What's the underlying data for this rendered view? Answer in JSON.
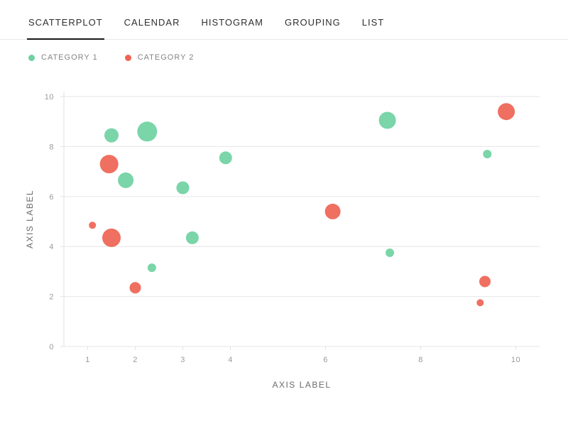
{
  "tabs": {
    "items": [
      {
        "label": "SCATTERPLOT",
        "active": true
      },
      {
        "label": "CALENDAR",
        "active": false
      },
      {
        "label": "HISTOGRAM",
        "active": false
      },
      {
        "label": "GROUPING",
        "active": false
      },
      {
        "label": "LIST",
        "active": false
      }
    ]
  },
  "chart_data": {
    "type": "scatter",
    "title": "",
    "xlabel": "AXIS LABEL",
    "ylabel": "AXIS LABEL",
    "xlim": [
      0.5,
      10.5
    ],
    "ylim": [
      0,
      10.2
    ],
    "x_ticks": [
      1,
      2,
      3,
      4,
      6,
      8,
      10
    ],
    "y_ticks": [
      0,
      2,
      4,
      6,
      8,
      10
    ],
    "grid": "horizontal",
    "legend_position": "top-left",
    "colors": {
      "grid": "#e6e6e6",
      "axis": "#e2e2e2",
      "tick_text": "#9b9b9b",
      "axis_label_text": "#6b6b6b"
    },
    "series": [
      {
        "name": "CATEGORY 1",
        "color": "#6fd1a2",
        "points": [
          {
            "x": 1.5,
            "y": 8.45,
            "size": 10
          },
          {
            "x": 2.25,
            "y": 8.6,
            "size": 14
          },
          {
            "x": 1.8,
            "y": 6.65,
            "size": 11
          },
          {
            "x": 3.0,
            "y": 6.35,
            "size": 9
          },
          {
            "x": 3.9,
            "y": 7.55,
            "size": 9
          },
          {
            "x": 3.2,
            "y": 4.35,
            "size": 9
          },
          {
            "x": 2.35,
            "y": 3.15,
            "size": 6
          },
          {
            "x": 7.3,
            "y": 9.05,
            "size": 12
          },
          {
            "x": 7.35,
            "y": 3.75,
            "size": 6
          },
          {
            "x": 9.4,
            "y": 7.7,
            "size": 6
          }
        ]
      },
      {
        "name": "CATEGORY 2",
        "color": "#ee6352",
        "points": [
          {
            "x": 1.1,
            "y": 4.85,
            "size": 5
          },
          {
            "x": 1.45,
            "y": 7.3,
            "size": 13
          },
          {
            "x": 1.5,
            "y": 4.35,
            "size": 13
          },
          {
            "x": 2.0,
            "y": 2.35,
            "size": 8
          },
          {
            "x": 6.15,
            "y": 5.4,
            "size": 11
          },
          {
            "x": 9.35,
            "y": 2.6,
            "size": 8
          },
          {
            "x": 9.25,
            "y": 1.75,
            "size": 5
          },
          {
            "x": 9.8,
            "y": 9.4,
            "size": 12
          }
        ]
      }
    ]
  }
}
